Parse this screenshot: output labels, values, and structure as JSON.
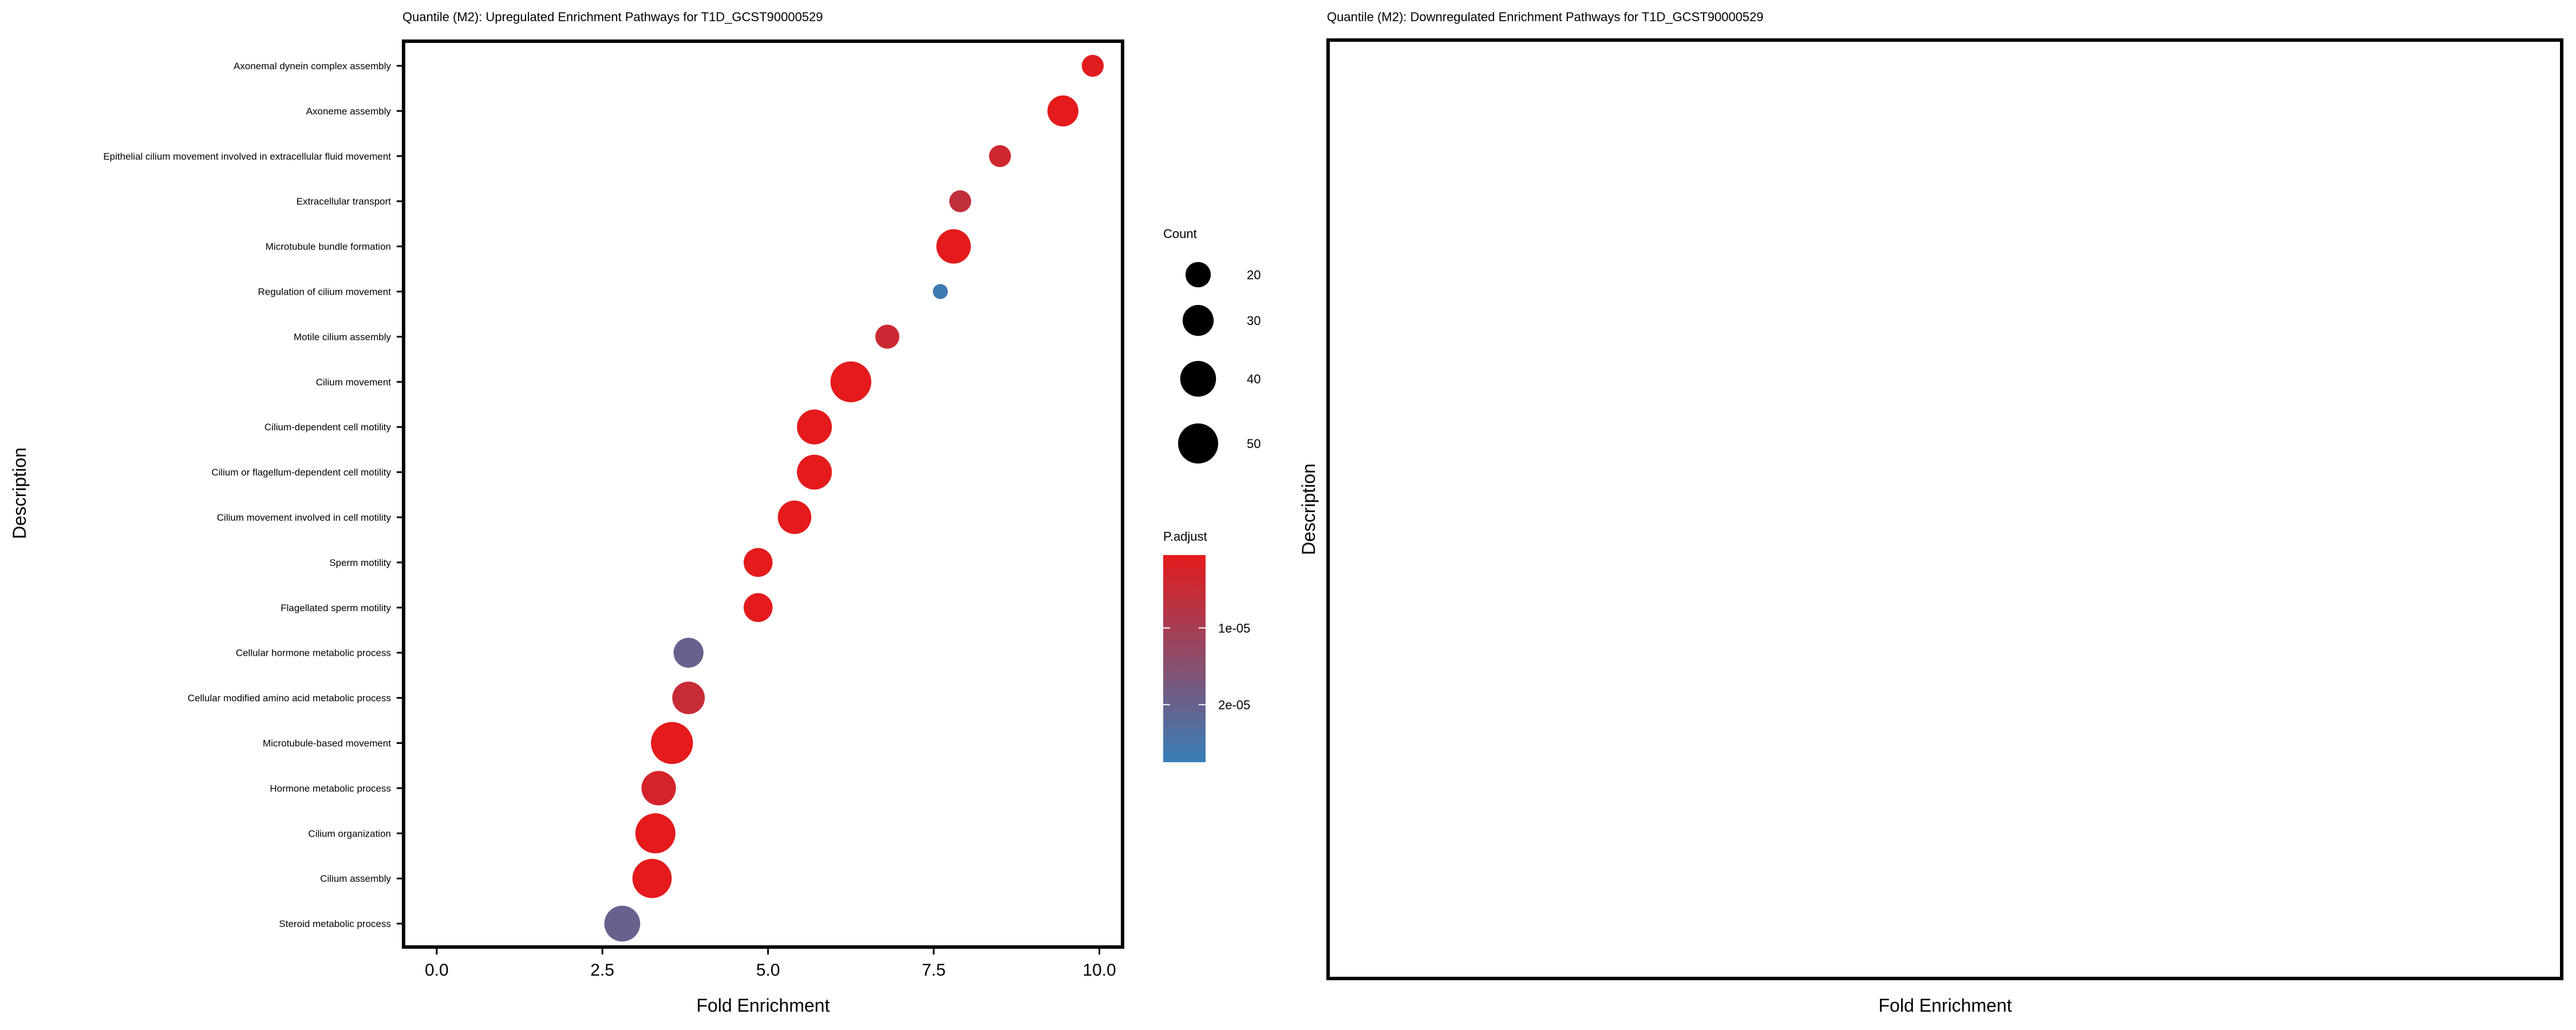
{
  "chart_data": [
    {
      "type": "scatter",
      "title": "Quantile (M2): Upregulated Enrichment Pathways for T1D_GCST90000529",
      "xlabel": "Fold Enrichment",
      "ylabel": "Description",
      "xlim": [
        -0.5,
        10.35
      ],
      "xticks": [
        "0.0",
        "2.5",
        "5.0",
        "7.5",
        "10.0"
      ],
      "xtick_values": [
        0,
        2.5,
        5,
        7.5,
        10
      ],
      "grid": false,
      "categories": [
        "Axonemal dynein complex assembly",
        "Axoneme assembly",
        "Epithelial cilium movement involved in extracellular fluid movement",
        "Extracellular transport",
        "Microtubule bundle formation",
        "Regulation of cilium movement",
        "Motile cilium assembly",
        "Cilium movement",
        "Cilium-dependent cell motility",
        "Cilium or flagellum-dependent cell motility",
        "Cilium movement involved in cell motility",
        "Sperm motility",
        "Flagellated sperm motility",
        "Cellular hormone metabolic process",
        "Cellular modified amino acid metabolic process",
        "Microtubule-based movement",
        "Hormone metabolic process",
        "Cilium organization",
        "Cilium assembly",
        "Steroid metabolic process"
      ],
      "points": [
        {
          "fold_enrichment": 9.9,
          "count": 15,
          "p_adjust": 1e-06
        },
        {
          "fold_enrichment": 9.45,
          "count": 30,
          "p_adjust": 5e-07
        },
        {
          "fold_enrichment": 8.5,
          "count": 15,
          "p_adjust": 4e-06
        },
        {
          "fold_enrichment": 7.9,
          "count": 15,
          "p_adjust": 6e-06
        },
        {
          "fold_enrichment": 7.8,
          "count": 37,
          "p_adjust": 5e-07
        },
        {
          "fold_enrichment": 7.6,
          "count": 7,
          "p_adjust": 2.65e-05
        },
        {
          "fold_enrichment": 6.8,
          "count": 18,
          "p_adjust": 4.5e-06
        },
        {
          "fold_enrichment": 6.25,
          "count": 52,
          "p_adjust": 5e-07
        },
        {
          "fold_enrichment": 5.7,
          "count": 38,
          "p_adjust": 5e-07
        },
        {
          "fold_enrichment": 5.7,
          "count": 38,
          "p_adjust": 5e-07
        },
        {
          "fold_enrichment": 5.4,
          "count": 35,
          "p_adjust": 5e-07
        },
        {
          "fold_enrichment": 4.85,
          "count": 26,
          "p_adjust": 5e-07
        },
        {
          "fold_enrichment": 4.85,
          "count": 26,
          "p_adjust": 5e-07
        },
        {
          "fold_enrichment": 3.8,
          "count": 28,
          "p_adjust": 2e-05
        },
        {
          "fold_enrichment": 3.8,
          "count": 33,
          "p_adjust": 5e-06
        },
        {
          "fold_enrichment": 3.55,
          "count": 55,
          "p_adjust": 5e-07
        },
        {
          "fold_enrichment": 3.35,
          "count": 37,
          "p_adjust": 3e-06
        },
        {
          "fold_enrichment": 3.3,
          "count": 50,
          "p_adjust": 5e-07
        },
        {
          "fold_enrichment": 3.25,
          "count": 48,
          "p_adjust": 5e-07
        },
        {
          "fold_enrichment": 2.8,
          "count": 40,
          "p_adjust": 2e-05
        }
      ],
      "size_legend": {
        "title": "Count",
        "entries": [
          {
            "label": "20",
            "value": 20
          },
          {
            "label": "30",
            "value": 30
          },
          {
            "label": "40",
            "value": 40
          },
          {
            "label": "50",
            "value": 50
          }
        ]
      },
      "color_legend": {
        "title": "P.adjust",
        "low_color": "#e41a1c",
        "high_color": "#377eb8",
        "domain": [
          5e-07,
          2.75e-05
        ],
        "ticks": [
          {
            "label": "1e-05",
            "value": 1e-05
          },
          {
            "label": "2e-05",
            "value": 2e-05
          }
        ]
      }
    },
    {
      "type": "scatter",
      "title": "Quantile (M2): Downregulated Enrichment Pathways for T1D_GCST90000529",
      "xlabel": "Fold Enrichment",
      "ylabel": "Description",
      "categories": [],
      "points": []
    }
  ]
}
